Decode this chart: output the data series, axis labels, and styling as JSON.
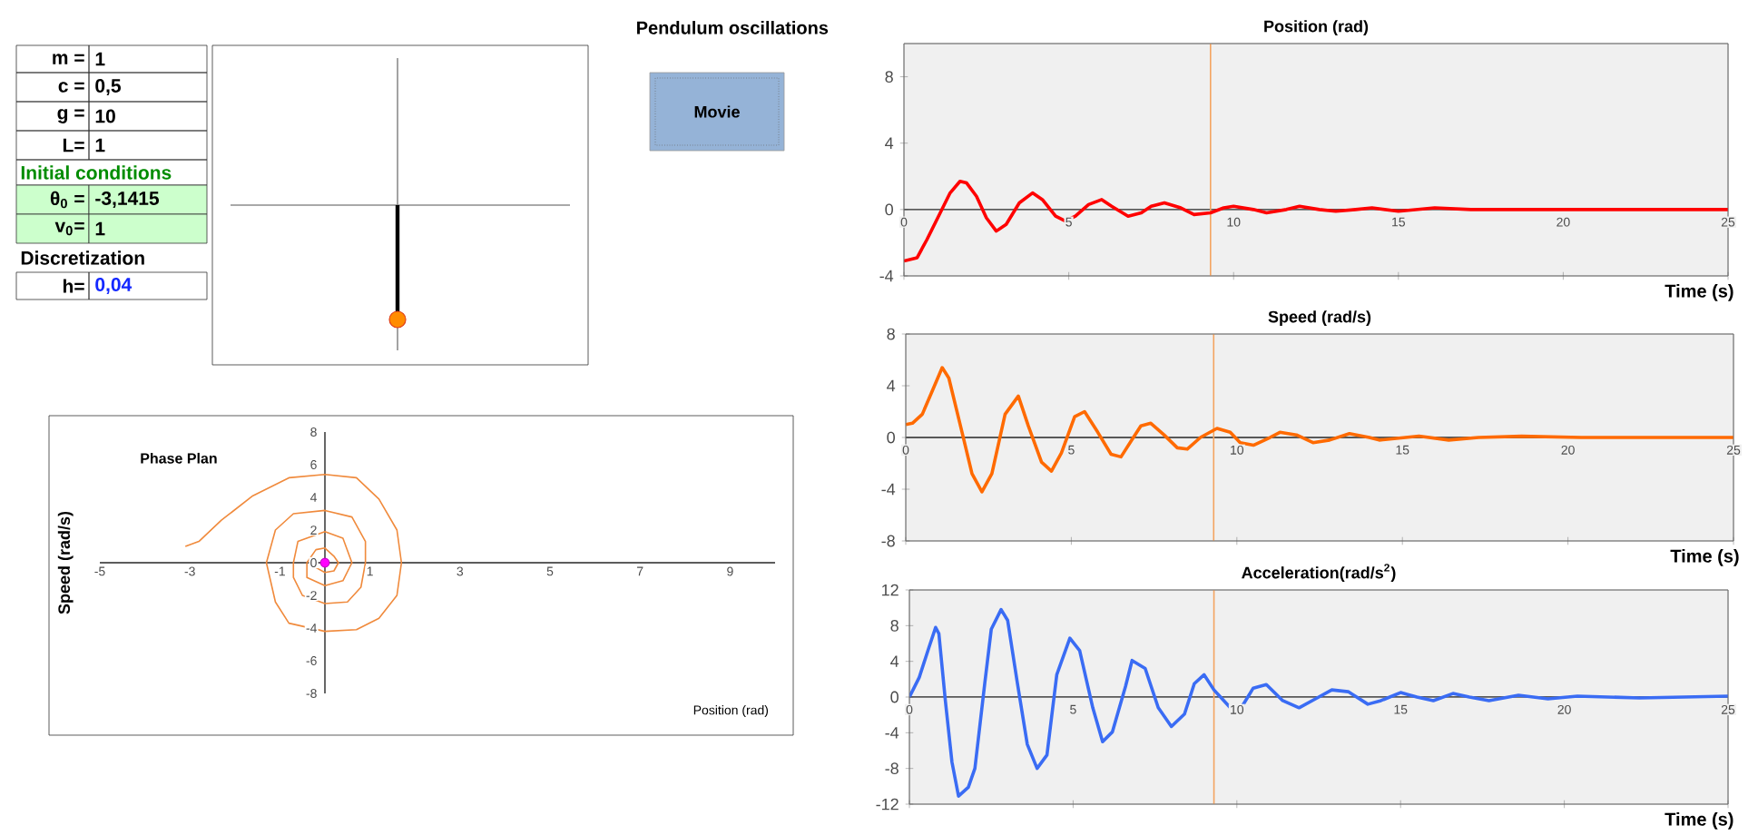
{
  "chart_data": [
    {
      "type": "other",
      "title": "Pendulum oscillations",
      "annotations": [
        "m =",
        "1",
        "c =",
        "0,5",
        "g =",
        "10",
        "L=",
        "1",
        "Initial conditions",
        "θ$_{0}$ =",
        "-3,1415",
        "v$_{0}$=",
        "1",
        "Discretization",
        "h=",
        "0,04",
        "Movie"
      ]
    },
    {
      "type": "line",
      "title": "Phase Plan",
      "xlabel": "Position  (rad)",
      "ylabel": "Speed (rad/s)",
      "xlim": [
        -5,
        10
      ],
      "ylim": [
        -8,
        8
      ],
      "xticks": [
        -5,
        -3,
        -1,
        1,
        3,
        5,
        7,
        9
      ],
      "yticks": [
        -8,
        -6,
        -4,
        -2,
        0,
        2,
        4,
        6,
        8
      ],
      "series": [
        {
          "type": "line",
          "marker": "none",
          "color": "#f08a3c",
          "x": [
            -3.1,
            -2.8,
            -2.3,
            -1.6,
            -0.8,
            0,
            0.7,
            1.2,
            1.6,
            1.7,
            1.6,
            1.2,
            0.7,
            0,
            -0.8,
            -1.1,
            -1.3,
            -1.1,
            -0.7,
            0,
            0.6,
            0.9,
            0.9,
            0.8,
            0.5,
            0,
            -0.5,
            -0.7,
            -0.7,
            -0.6,
            0,
            0.4,
            0.6,
            0.4,
            0,
            -0.4,
            -0.4,
            -0.2,
            0,
            0.2,
            0.3,
            0.2,
            0,
            -0.2,
            -0.2
          ],
          "values": [
            1.0,
            1.3,
            2.6,
            4.1,
            5.2,
            5.4,
            5.2,
            3.9,
            2.0,
            0,
            -2.0,
            -3.4,
            -4.1,
            -4.2,
            -3.7,
            -2.4,
            0,
            2.0,
            3.0,
            3.2,
            2.8,
            1.3,
            0,
            -1.5,
            -2.4,
            -2.5,
            -2.0,
            -0.9,
            0,
            1.3,
            1.9,
            1.5,
            0,
            -1.1,
            -1.4,
            -0.9,
            0,
            0.8,
            0.9,
            0.4,
            0,
            -0.5,
            -0.6,
            -0.3,
            0.2
          ]
        },
        {
          "type": "scatter",
          "marker": "circle",
          "color": "#ff00ff",
          "x": [
            0
          ],
          "values": [
            0
          ]
        }
      ]
    },
    {
      "type": "line",
      "title": "Position (rad)",
      "xlabel": "Time (s)",
      "xlim": [
        0,
        25
      ],
      "ylim": [
        -4,
        10
      ],
      "xticks": [
        0,
        5,
        10,
        15,
        20,
        25
      ],
      "yticks": [
        -4,
        0,
        4,
        8
      ],
      "ref_lines": [
        {
          "axis": "x",
          "value": 9.3,
          "color": "#f4a460"
        }
      ],
      "series": [
        {
          "color": "#ff0000",
          "x": [
            0,
            0.4,
            0.7,
            1.1,
            1.4,
            1.7,
            1.9,
            2.2,
            2.5,
            2.8,
            3.1,
            3.5,
            3.9,
            4.2,
            4.6,
            4.9,
            5.2,
            5.6,
            6.0,
            6.3,
            6.8,
            7.2,
            7.5,
            7.9,
            8.4,
            8.8,
            9.3,
            9.7,
            10.0,
            10.6,
            11.0,
            11.6,
            12.0,
            12.6,
            13.1,
            13.7,
            14.2,
            15.0,
            16.1,
            17.2,
            18.1,
            20.5,
            25
          ],
          "values": [
            -3.1,
            -2.9,
            -1.8,
            -0.2,
            1.0,
            1.7,
            1.6,
            0.8,
            -0.5,
            -1.3,
            -0.9,
            0.4,
            1.0,
            0.6,
            -0.4,
            -0.7,
            -0.4,
            0.3,
            0.6,
            0.2,
            -0.4,
            -0.2,
            0.2,
            0.4,
            0.1,
            -0.3,
            -0.2,
            0.1,
            0.2,
            0,
            -0.2,
            0,
            0.2,
            0,
            -0.1,
            0,
            0.1,
            -0.1,
            0.1,
            0,
            0,
            0,
            0
          ]
        }
      ]
    },
    {
      "type": "line",
      "title": "Speed (rad/s)",
      "xlabel": "Time (s)",
      "xlim": [
        0,
        25
      ],
      "ylim": [
        -8,
        8
      ],
      "xticks": [
        0,
        5,
        10,
        15,
        20,
        25
      ],
      "yticks": [
        -8,
        -4,
        0,
        4,
        8
      ],
      "ref_lines": [
        {
          "axis": "x",
          "value": 9.3,
          "color": "#f4a460"
        }
      ],
      "series": [
        {
          "color": "#ff6a00",
          "x": [
            0,
            0.2,
            0.5,
            0.8,
            1.1,
            1.3,
            1.7,
            2.0,
            2.3,
            2.6,
            3.0,
            3.4,
            3.7,
            4.1,
            4.4,
            4.7,
            5.1,
            5.4,
            5.8,
            6.2,
            6.5,
            6.8,
            7.1,
            7.4,
            7.8,
            8.2,
            8.5,
            8.9,
            9.4,
            9.8,
            10.1,
            10.5,
            11.0,
            11.3,
            11.8,
            12.3,
            12.8,
            13.4,
            14.0,
            14.3,
            15.5,
            16.4,
            17.3,
            18.6,
            20.4,
            22.2,
            25
          ],
          "values": [
            1.0,
            1.1,
            1.8,
            3.6,
            5.4,
            4.6,
            0.4,
            -2.8,
            -4.2,
            -2.8,
            1.8,
            3.2,
            0.9,
            -1.9,
            -2.6,
            -1.2,
            1.6,
            2.0,
            0.4,
            -1.3,
            -1.5,
            -0.3,
            0.9,
            1.1,
            0.2,
            -0.8,
            -0.9,
            0,
            0.7,
            0.4,
            -0.4,
            -0.6,
            0,
            0.4,
            0.2,
            -0.4,
            -0.2,
            0.3,
            0,
            -0.2,
            0.1,
            -0.2,
            0,
            0.1,
            0,
            0,
            0
          ]
        }
      ]
    },
    {
      "type": "line",
      "title": "Acceleration(rad/s$^{2}$)",
      "xlabel": "Time (s)",
      "xlim": [
        0,
        25
      ],
      "ylim": [
        -12,
        12
      ],
      "xticks": [
        0,
        5,
        10,
        15,
        20,
        25
      ],
      "yticks": [
        -12,
        -8,
        -4,
        0,
        4,
        8,
        12
      ],
      "ref_lines": [
        {
          "axis": "x",
          "value": 9.3,
          "color": "#f4a460"
        }
      ],
      "series": [
        {
          "color": "#3a6cf4",
          "x": [
            0,
            0.3,
            0.6,
            0.8,
            0.9,
            1.1,
            1.3,
            1.5,
            1.8,
            2.0,
            2.3,
            2.5,
            2.8,
            3.0,
            3.3,
            3.6,
            3.9,
            4.2,
            4.5,
            4.9,
            5.2,
            5.6,
            5.9,
            6.2,
            6.6,
            6.8,
            7.2,
            7.6,
            8.0,
            8.4,
            8.7,
            9.0,
            9.3,
            9.8,
            10.1,
            10.5,
            10.9,
            11.4,
            11.9,
            12.4,
            12.9,
            13.4,
            14.0,
            14.4,
            15.0,
            15.5,
            16.0,
            16.6,
            17.1,
            17.7,
            18.6,
            19.5,
            20.4,
            22.3,
            25
          ],
          "values": [
            0,
            2.2,
            5.6,
            7.8,
            7.1,
            -0.5,
            -7.3,
            -11.1,
            -10.1,
            -8.0,
            1.5,
            7.6,
            9.8,
            8.6,
            1.5,
            -5.3,
            -8.0,
            -6.5,
            2.5,
            6.6,
            5.2,
            -1.2,
            -5.0,
            -3.9,
            1.2,
            4.1,
            3.2,
            -1.2,
            -3.3,
            -1.9,
            1.5,
            2.5,
            0.8,
            -1.2,
            -1.4,
            1.0,
            1.4,
            -0.4,
            -1.2,
            -0.2,
            0.8,
            0.6,
            -0.8,
            -0.4,
            0.5,
            0,
            -0.4,
            0.4,
            0,
            -0.4,
            0.2,
            -0.2,
            0.1,
            -0.1,
            0.1
          ]
        }
      ]
    }
  ]
}
